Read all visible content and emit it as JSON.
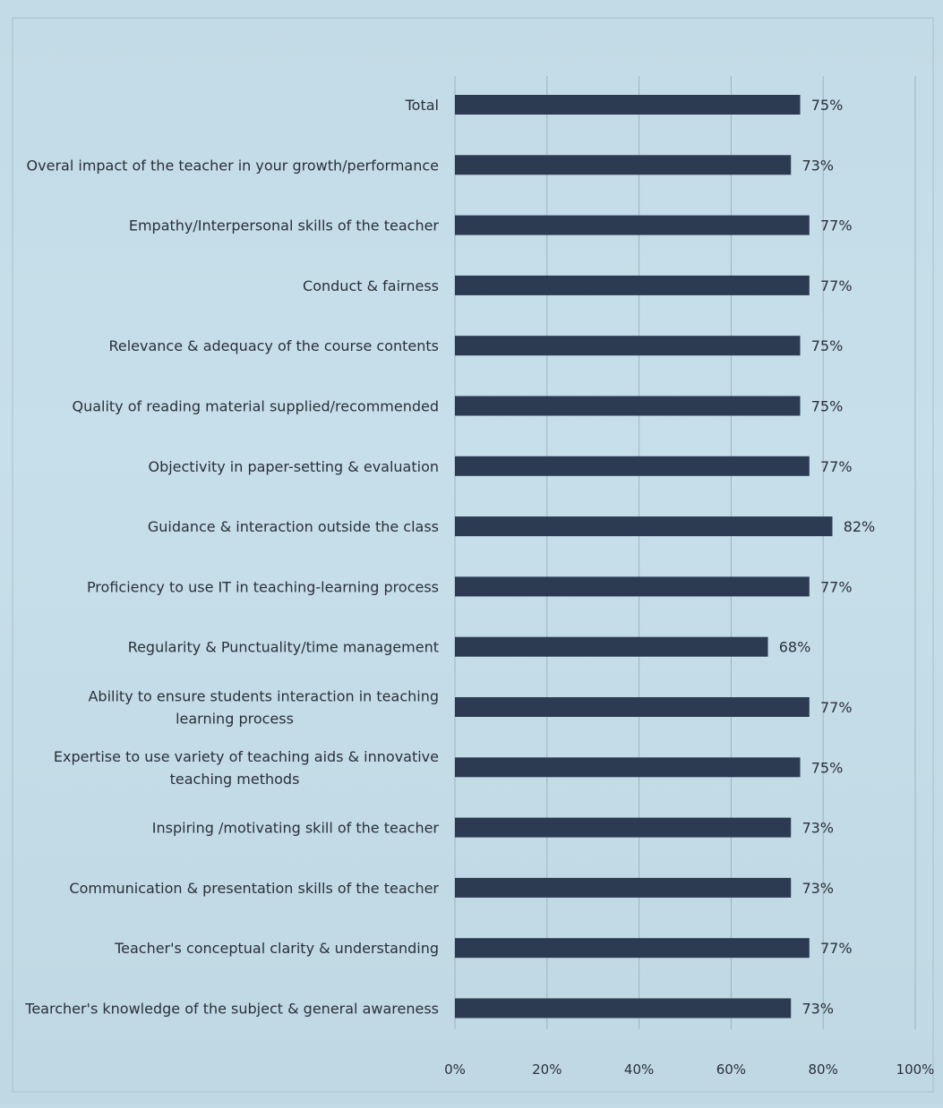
{
  "chart_data": {
    "type": "bar",
    "orientation": "horizontal",
    "title": "",
    "xlabel": "",
    "ylabel": "",
    "xlim": [
      0,
      100
    ],
    "grid": true,
    "legend": "none",
    "categories": [
      "Total",
      "Overal impact of the teacher in your growth/performance",
      "Empathy/Interpersonal skills of the teacher",
      "Conduct & fairness",
      "Relevance & adequacy of the course contents",
      "Quality of reading material supplied/recommended",
      "Objectivity in paper-setting & evaluation",
      "Guidance & interaction outside the class",
      "Proficiency to use IT in teaching-learning process",
      "Regularity & Punctuality/time management",
      "Ability to ensure students interaction in teaching learning process",
      "Expertise to use variety of teaching aids & innovative teaching methods",
      "Inspiring /motivating skill of the teacher",
      "Communication & presentation skills of the teacher",
      "Teacher's conceptual clarity & understanding",
      "Tearcher's knowledge of the subject & general awareness"
    ],
    "values": [
      75,
      73,
      77,
      77,
      75,
      75,
      77,
      82,
      77,
      68,
      77,
      75,
      73,
      73,
      77,
      73
    ],
    "value_labels": [
      "75%",
      "73%",
      "77%",
      "77%",
      "75%",
      "75%",
      "77%",
      "82%",
      "77%",
      "68%",
      "77%",
      "75%",
      "73%",
      "73%",
      "77%",
      "73%"
    ],
    "x_ticks": [
      "0%",
      "20%",
      "40%",
      "60%",
      "80%",
      "100%"
    ],
    "colors": {
      "bar": "#2c3a52",
      "grid": "#9fb4bf"
    }
  }
}
